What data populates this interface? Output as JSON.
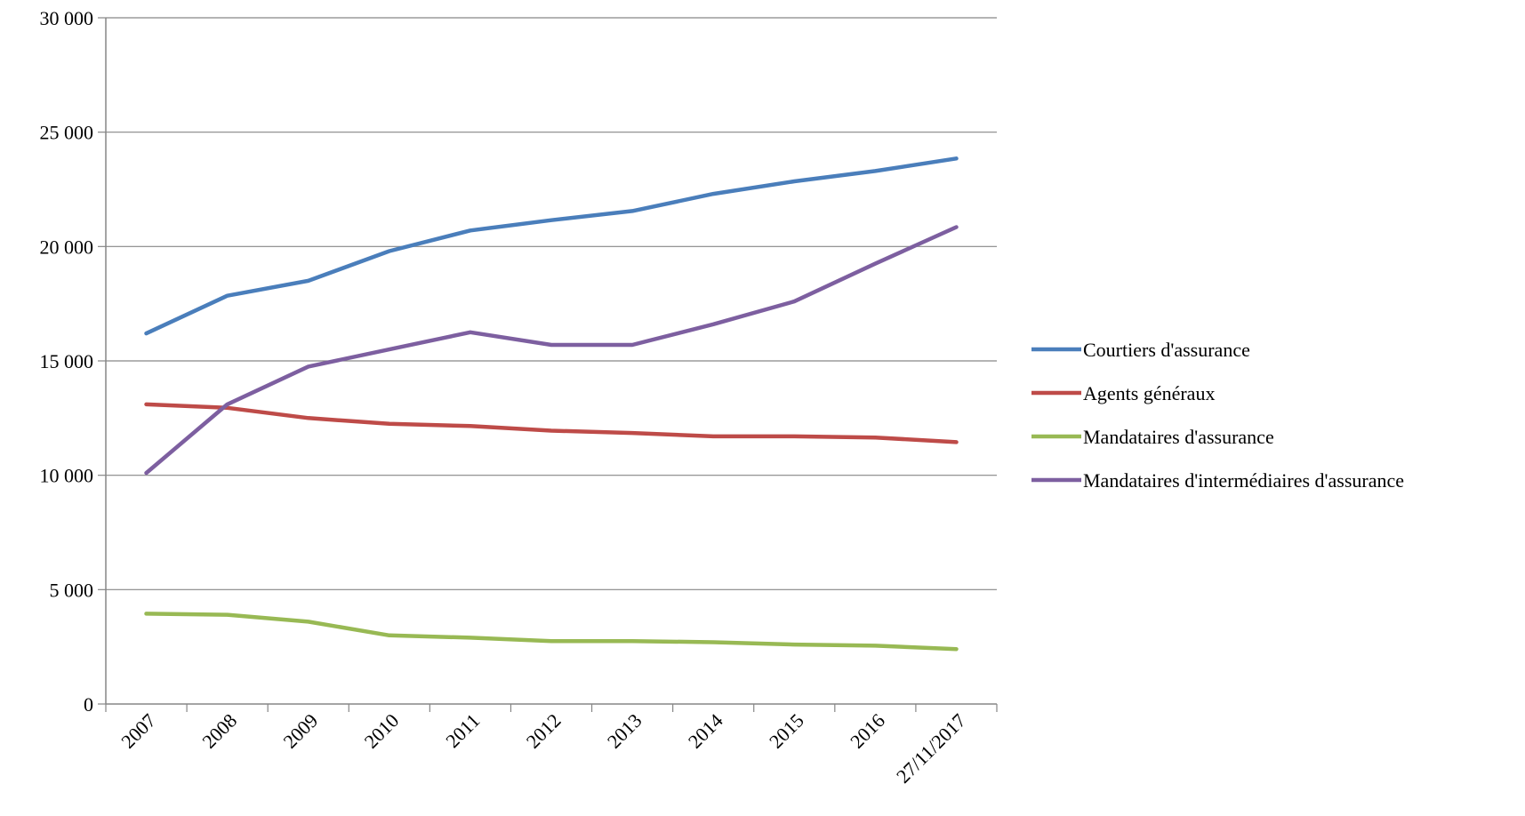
{
  "chart_data": {
    "type": "line",
    "categories": [
      "2007",
      "2008",
      "2009",
      "2010",
      "2011",
      "2012",
      "2013",
      "2014",
      "2015",
      "2016",
      "27/11/2017"
    ],
    "ylim": [
      0,
      30000
    ],
    "yticks": [
      0,
      5000,
      10000,
      15000,
      20000,
      25000,
      30000
    ],
    "ytick_labels": [
      "0",
      "5 000",
      "10 000",
      "15 000",
      "20 000",
      "25 000",
      "30 000"
    ],
    "grid": true,
    "legend_position": "right",
    "series": [
      {
        "name": "Courtiers d'assurance",
        "color": "#4a7ebb",
        "values": [
          16200,
          17850,
          18500,
          19800,
          20700,
          21150,
          21550,
          22300,
          22850,
          23300,
          23850
        ]
      },
      {
        "name": "Agents généraux",
        "color": "#be4b48",
        "values": [
          13100,
          12950,
          12500,
          12250,
          12150,
          11950,
          11850,
          11700,
          11700,
          11650,
          11450
        ]
      },
      {
        "name": "Mandataires d'assurance",
        "color": "#98b954",
        "values": [
          3950,
          3900,
          3600,
          3000,
          2900,
          2750,
          2750,
          2700,
          2600,
          2550,
          2400
        ]
      },
      {
        "name": "Mandataires d'intermédiaires d'assurance",
        "color": "#7d5fa0",
        "values": [
          10100,
          13100,
          14750,
          15500,
          16250,
          15700,
          15700,
          16600,
          17600,
          19250,
          20850
        ]
      }
    ]
  }
}
